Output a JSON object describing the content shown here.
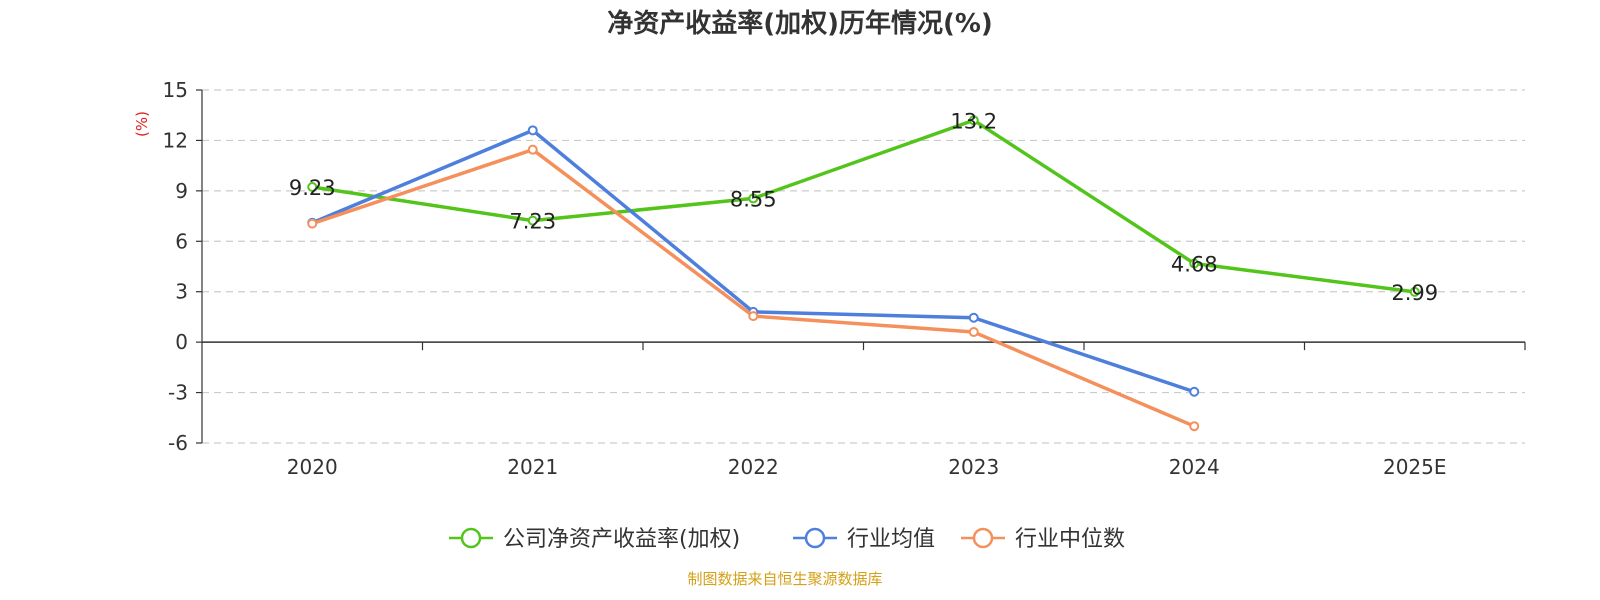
{
  "chart_data": {
    "type": "line",
    "title": "净资产收益率(加权)历年情况(%)",
    "ylabel": "(%)",
    "xlabel": "",
    "categories": [
      "2020",
      "2021",
      "2022",
      "2023",
      "2024",
      "2025E"
    ],
    "ylim": [
      -6,
      15
    ],
    "yticks": [
      -6,
      -3,
      0,
      3,
      6,
      9,
      12,
      15
    ],
    "grid": true,
    "legend_position": "bottom",
    "series": [
      {
        "name": "公司净资产收益率(加权)",
        "color": "#52c41a",
        "values": [
          9.23,
          7.23,
          8.55,
          13.2,
          4.68,
          2.99
        ],
        "labels": [
          "9.23",
          "7.23",
          "8.55",
          "13.2",
          "4.68",
          "2.99"
        ],
        "show_labels": true
      },
      {
        "name": "行业均值",
        "color": "#4e7fdc",
        "values": [
          7.1,
          12.6,
          1.8,
          1.45,
          -2.95,
          null
        ],
        "show_labels": false
      },
      {
        "name": "行业中位数",
        "color": "#f5905c",
        "values": [
          7.05,
          11.45,
          1.55,
          0.6,
          -5.0,
          null
        ],
        "show_labels": false
      }
    ],
    "source": "制图数据来自恒生聚源数据库",
    "source_color": "#d4a017",
    "ylabel_color": "#e02020"
  }
}
